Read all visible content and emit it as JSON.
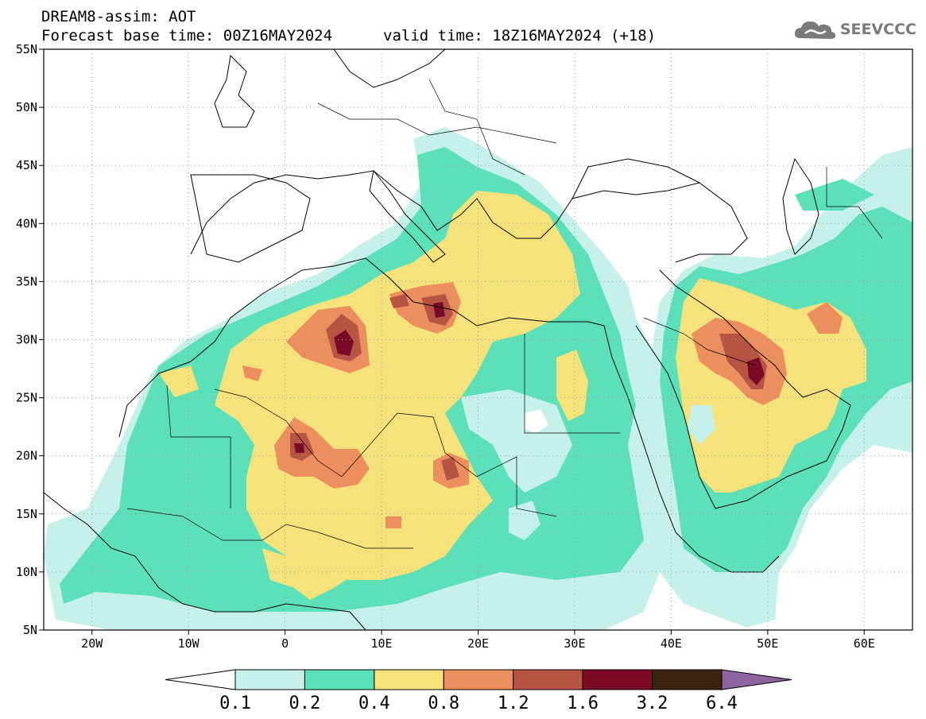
{
  "header": {
    "title": "DREAM8-assim: AOT",
    "base_time": "Forecast base time: 00Z16MAY2024",
    "valid_time": "valid time: 18Z16MAY2024 (+18)"
  },
  "logo": {
    "text": "SEEVCCC",
    "icon": "cloud-icon"
  },
  "map": {
    "lon_labels": [
      "20W",
      "10W",
      "0",
      "10E",
      "20E",
      "30E",
      "40E",
      "50E",
      "60E"
    ],
    "lat_labels": [
      "55N",
      "50N",
      "45N",
      "40N",
      "35N",
      "30N",
      "25N",
      "20N",
      "15N",
      "10N",
      "5N"
    ],
    "lon_range": [
      -25,
      65
    ],
    "lat_range": [
      5,
      55
    ],
    "grid": "dotted"
  },
  "colorbar": {
    "levels": [
      "0.1",
      "0.2",
      "0.4",
      "0.8",
      "1.2",
      "1.6",
      "3.2",
      "6.4"
    ],
    "colors": [
      "#ffffff",
      "#c6f0ea",
      "#5ce0b8",
      "#f6e27a",
      "#ec8e5e",
      "#b85444",
      "#7a0a28",
      "#3a2410",
      "#8c64a0"
    ]
  },
  "palette": {
    "lt": "#c6f0ea",
    "gr": "#5ce0b8",
    "ye": "#f6e27a",
    "or": "#ec8e5e",
    "rd": "#b85444",
    "dr": "#7a0a28",
    "br": "#3a2410"
  }
}
